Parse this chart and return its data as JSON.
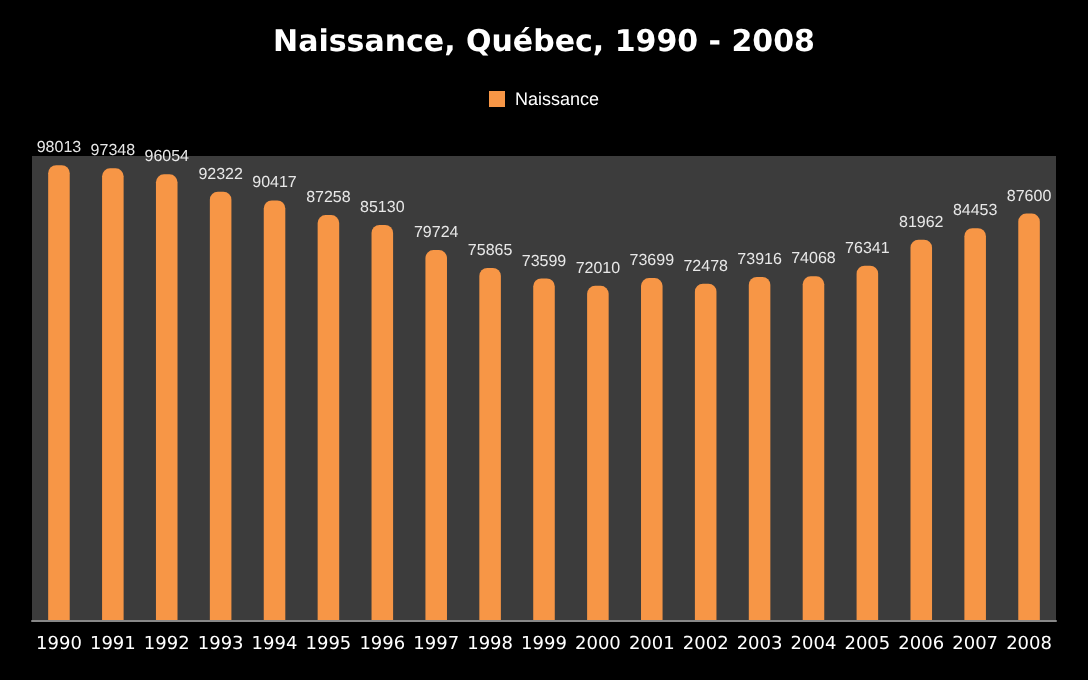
{
  "chart_data": {
    "type": "bar",
    "title": "Naissance, Québec, 1990 - 2008",
    "categories": [
      "1990",
      "1991",
      "1992",
      "1993",
      "1994",
      "1995",
      "1996",
      "1997",
      "1998",
      "1999",
      "2000",
      "2001",
      "2002",
      "2003",
      "2004",
      "2005",
      "2006",
      "2007",
      "2008"
    ],
    "series": [
      {
        "name": "Naissance",
        "color": "#f79646",
        "values": [
          98013,
          97348,
          96054,
          92322,
          90417,
          87258,
          85130,
          79724,
          75865,
          73599,
          72010,
          73699,
          72478,
          73916,
          74068,
          76341,
          81962,
          84453,
          87600
        ]
      }
    ],
    "data_labels": true,
    "legend": "top",
    "tick_labels": "x"
  }
}
